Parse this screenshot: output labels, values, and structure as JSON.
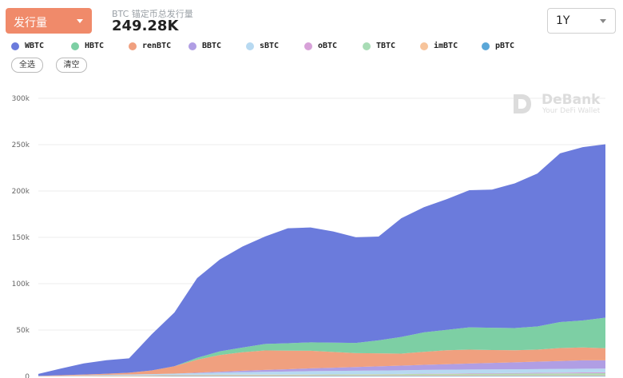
{
  "header": {
    "metric_label": "发行量",
    "summary_label": "BTC 锚定币总发行量",
    "summary_value": "249.28K",
    "range_label": "1Y"
  },
  "filters": {
    "select_all": "全选",
    "clear": "清空"
  },
  "watermark": {
    "title": "DeBank",
    "subtitle": "Your DeFi Wallet"
  },
  "chart_data": {
    "type": "area",
    "stacked": true,
    "title": "",
    "xlabel": "",
    "ylabel": "",
    "ylim": [
      0,
      300000
    ],
    "yticks": [
      0,
      50000,
      100000,
      150000,
      200000,
      250000,
      300000
    ],
    "ytick_labels": [
      "0",
      "50k",
      "100k",
      "150k",
      "200k",
      "250k",
      "300k"
    ],
    "grid": true,
    "legend_position": "top-left",
    "x": [
      0,
      4,
      8,
      12,
      16,
      20,
      24,
      28,
      32,
      36,
      40,
      44,
      48,
      52,
      56,
      60,
      64,
      68,
      72,
      76,
      80,
      84,
      88,
      92,
      96,
      100
    ],
    "series": [
      {
        "name": "pBTC",
        "color": "#5aa7d8",
        "values": [
          0,
          100,
          100,
          200,
          200,
          300,
          400,
          400,
          500,
          500,
          500,
          500,
          600,
          600,
          600,
          600,
          600,
          700,
          700,
          700,
          700,
          700,
          700,
          700,
          700,
          700
        ]
      },
      {
        "name": "imBTC",
        "color": "#f7c49b",
        "values": [
          100,
          300,
          500,
          700,
          800,
          900,
          1000,
          1000,
          1000,
          1000,
          1000,
          900,
          900,
          900,
          900,
          900,
          900,
          900,
          900,
          900,
          800,
          800,
          800,
          800,
          800,
          800
        ]
      },
      {
        "name": "TBTC",
        "color": "#a8dcb5",
        "values": [
          0,
          0,
          0,
          0,
          0,
          0,
          0,
          100,
          200,
          300,
          400,
          500,
          600,
          700,
          800,
          900,
          1000,
          1100,
          1200,
          1300,
          1400,
          1500,
          1600,
          1700,
          1800,
          1900
        ]
      },
      {
        "name": "oBTC",
        "color": "#d7a1d8",
        "values": [
          0,
          0,
          0,
          0,
          0,
          0,
          0,
          0,
          0,
          0,
          0,
          0,
          0,
          0,
          0,
          100,
          200,
          300,
          400,
          500,
          600,
          700,
          800,
          900,
          1000,
          1000
        ]
      },
      {
        "name": "sBTC",
        "color": "#b7d9f1",
        "values": [
          200,
          400,
          600,
          800,
          1000,
          1300,
          1600,
          2000,
          2400,
          2800,
          3100,
          3400,
          3600,
          3700,
          3800,
          3900,
          3900,
          4000,
          4000,
          4000,
          4000,
          4000,
          4000,
          4000,
          4000,
          4000
        ]
      },
      {
        "name": "BBTC",
        "color": "#b09ee4",
        "values": [
          0,
          0,
          0,
          0,
          0,
          0,
          0,
          500,
          1000,
          1500,
          2000,
          2500,
          3000,
          3500,
          4000,
          4500,
          5000,
          5500,
          6000,
          6500,
          7000,
          7500,
          8000,
          8500,
          9000,
          9000
        ]
      },
      {
        "name": "renBTC",
        "color": "#f0a07f",
        "values": [
          200,
          500,
          800,
          1200,
          2000,
          4000,
          8000,
          14000,
          18000,
          20000,
          21000,
          20000,
          19000,
          17000,
          15000,
          14000,
          13000,
          14000,
          15000,
          15000,
          14000,
          13000,
          13000,
          14000,
          14000,
          13000
        ]
      },
      {
        "name": "HBTC",
        "color": "#7dcfa4",
        "values": [
          0,
          0,
          0,
          0,
          0,
          0,
          0,
          2000,
          4000,
          5000,
          7000,
          8000,
          9000,
          10000,
          11000,
          14000,
          18000,
          21000,
          22000,
          24000,
          24000,
          24000,
          25000,
          28000,
          29000,
          33000
        ]
      },
      {
        "name": "WBTC",
        "color": "#6b7bdc",
        "values": [
          2200,
          7200,
          12000,
          14600,
          15500,
          39000,
          58000,
          86000,
          99000,
          109000,
          116000,
          124000,
          124000,
          120000,
          114000,
          112000,
          128000,
          135000,
          141000,
          148000,
          149000,
          156000,
          165000,
          182000,
          187000,
          187000
        ]
      }
    ]
  }
}
